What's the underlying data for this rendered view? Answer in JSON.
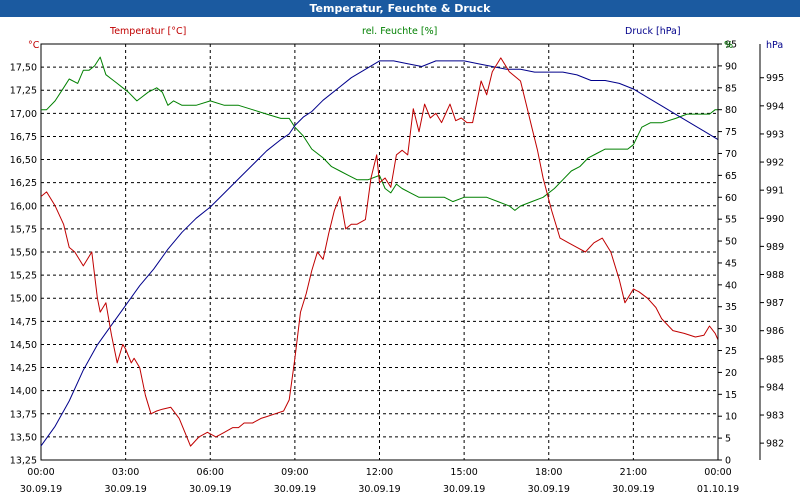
{
  "window": {
    "title": "Temperatur, Feuchte & Druck"
  },
  "chart_data": {
    "type": "line",
    "title": "Temperatur, Feuchte & Druck",
    "x_unit": "hours",
    "xlim": [
      0,
      24
    ],
    "x_ticks": [
      {
        "x": 0,
        "time": "00:00",
        "date": "30.09.19"
      },
      {
        "x": 3,
        "time": "03:00",
        "date": "30.09.19"
      },
      {
        "x": 6,
        "time": "06:00",
        "date": "30.09.19"
      },
      {
        "x": 9,
        "time": "09:00",
        "date": "30.09.19"
      },
      {
        "x": 12,
        "time": "12:00",
        "date": "30.09.19"
      },
      {
        "x": 15,
        "time": "15:00",
        "date": "30.09.19"
      },
      {
        "x": 18,
        "time": "18:00",
        "date": "30.09.19"
      },
      {
        "x": 21,
        "time": "21:00",
        "date": "30.09.19"
      },
      {
        "x": 24,
        "time": "00:00",
        "date": "01.10.19"
      }
    ],
    "axes": {
      "temperature": {
        "unit": "°C",
        "label": "Temperatur [°C]",
        "color": "#c00000",
        "range": [
          13.25,
          17.75
        ],
        "ticks": [
          "13,25",
          "13,50",
          "13,75",
          "14,00",
          "14,25",
          "14,50",
          "14,75",
          "15,00",
          "15,25",
          "15,50",
          "15,75",
          "16,00",
          "16,25",
          "16,50",
          "16,75",
          "17,00",
          "17,25",
          "17,50"
        ]
      },
      "humidity": {
        "unit": "%",
        "label": "rel. Feuchte [%]",
        "color": "#008000",
        "range": [
          0,
          95
        ],
        "ticks": [
          "0",
          "5",
          "10",
          "15",
          "20",
          "25",
          "30",
          "35",
          "40",
          "45",
          "50",
          "55",
          "60",
          "65",
          "70",
          "75",
          "80",
          "85",
          "90",
          "95"
        ]
      },
      "pressure": {
        "unit": "hPa",
        "label": "Druck [hPa]",
        "color": "#00008b",
        "range": [
          981.4,
          996.2
        ],
        "ticks": [
          "982",
          "983",
          "984",
          "985",
          "986",
          "987",
          "988",
          "989",
          "990",
          "991",
          "992",
          "993",
          "994",
          "995"
        ]
      }
    },
    "series": [
      {
        "name": "Temperatur [°C]",
        "axis": "temperature",
        "color": "#c00000",
        "x": [
          0,
          0.2,
          0.5,
          0.8,
          1.0,
          1.2,
          1.5,
          1.8,
          2.0,
          2.1,
          2.3,
          2.5,
          2.7,
          2.9,
          3.0,
          3.2,
          3.3,
          3.5,
          3.7,
          3.9,
          4.1,
          4.3,
          4.6,
          4.9,
          5.1,
          5.3,
          5.6,
          5.9,
          6.2,
          6.5,
          6.8,
          7.0,
          7.2,
          7.5,
          7.8,
          8.0,
          8.3,
          8.6,
          8.8,
          9.0,
          9.2,
          9.4,
          9.6,
          9.8,
          10.0,
          10.2,
          10.4,
          10.6,
          10.8,
          11.0,
          11.2,
          11.5,
          11.7,
          11.9,
          12.0,
          12.2,
          12.4,
          12.6,
          12.8,
          13.0,
          13.2,
          13.4,
          13.6,
          13.8,
          14.0,
          14.2,
          14.5,
          14.7,
          14.9,
          15.1,
          15.3,
          15.6,
          15.8,
          16.0,
          16.3,
          16.6,
          16.8,
          17.0,
          17.2,
          17.4,
          17.6,
          17.8,
          18.1,
          18.4,
          18.7,
          19.0,
          19.3,
          19.6,
          19.9,
          20.2,
          20.5,
          20.7,
          20.9,
          21.0,
          21.2,
          21.5,
          21.8,
          22.0,
          22.4,
          22.8,
          23.2,
          23.5,
          23.7,
          23.9,
          24.0
        ],
        "values": [
          16.1,
          16.15,
          16.0,
          15.8,
          15.55,
          15.5,
          15.35,
          15.5,
          15.0,
          14.85,
          14.95,
          14.6,
          14.3,
          14.5,
          14.45,
          14.3,
          14.35,
          14.25,
          13.95,
          13.75,
          13.78,
          13.8,
          13.82,
          13.7,
          13.55,
          13.4,
          13.5,
          13.55,
          13.5,
          13.55,
          13.6,
          13.6,
          13.65,
          13.65,
          13.7,
          13.72,
          13.75,
          13.78,
          13.9,
          14.35,
          14.85,
          15.05,
          15.3,
          15.5,
          15.42,
          15.7,
          15.95,
          16.1,
          15.75,
          15.8,
          15.8,
          15.85,
          16.3,
          16.55,
          16.25,
          16.3,
          16.2,
          16.55,
          16.6,
          16.55,
          17.05,
          16.8,
          17.1,
          16.95,
          17.0,
          16.9,
          17.1,
          16.92,
          16.95,
          16.9,
          16.9,
          17.35,
          17.2,
          17.45,
          17.6,
          17.45,
          17.4,
          17.35,
          17.1,
          16.85,
          16.6,
          16.3,
          15.95,
          15.65,
          15.6,
          15.55,
          15.5,
          15.6,
          15.65,
          15.5,
          15.2,
          14.95,
          15.05,
          15.1,
          15.07,
          15.0,
          14.9,
          14.78,
          14.65,
          14.62,
          14.58,
          14.6,
          14.7,
          14.62,
          14.55
        ]
      },
      {
        "name": "rel. Feuchte [%]",
        "axis": "humidity",
        "color": "#008000",
        "x": [
          0,
          0.2,
          0.5,
          0.8,
          1.0,
          1.3,
          1.5,
          1.7,
          1.9,
          2.1,
          2.3,
          2.5,
          2.7,
          2.9,
          3.1,
          3.4,
          3.6,
          3.8,
          4.1,
          4.3,
          4.5,
          4.7,
          5.0,
          5.5,
          6.0,
          6.5,
          7.0,
          7.5,
          8.0,
          8.5,
          8.8,
          9.0,
          9.3,
          9.6,
          10.0,
          10.3,
          10.6,
          10.9,
          11.2,
          11.6,
          12.0,
          12.2,
          12.4,
          12.6,
          12.8,
          13.1,
          13.4,
          13.7,
          14.0,
          14.3,
          14.6,
          15.0,
          15.4,
          15.8,
          16.2,
          16.6,
          16.8,
          17.0,
          17.4,
          17.8,
          18.2,
          18.5,
          18.8,
          19.1,
          19.4,
          19.7,
          20.0,
          20.3,
          20.6,
          20.8,
          21.0,
          21.3,
          21.6,
          22.0,
          22.5,
          22.9,
          23.3,
          23.7,
          23.9,
          24.0
        ],
        "values": [
          80,
          80,
          82,
          85,
          87,
          86,
          89,
          89,
          90,
          92,
          88,
          87,
          86,
          85,
          84,
          82,
          83,
          84,
          85,
          84,
          81,
          82,
          81,
          81,
          82,
          81,
          81,
          80,
          79,
          78,
          78,
          76,
          74,
          71,
          69,
          67,
          66,
          65,
          64,
          64,
          65,
          62,
          61,
          63,
          62,
          61,
          60,
          60,
          60,
          60,
          59,
          60,
          60,
          60,
          59,
          58,
          57,
          58,
          59,
          60,
          62,
          64,
          66,
          67,
          69,
          70,
          71,
          71,
          71,
          71,
          72,
          76,
          77,
          77,
          78,
          79,
          79,
          79,
          80,
          80
        ]
      },
      {
        "name": "Druck [hPa]",
        "axis": "pressure",
        "color": "#00008b",
        "x": [
          0,
          0.5,
          1.0,
          1.5,
          2.0,
          2.5,
          3.0,
          3.5,
          4.0,
          4.5,
          5.0,
          5.5,
          6.0,
          6.5,
          7.0,
          7.5,
          8.0,
          8.5,
          8.8,
          9.0,
          9.3,
          9.6,
          10.0,
          10.5,
          11.0,
          11.5,
          12.0,
          12.5,
          13.0,
          13.5,
          14.0,
          14.5,
          15.0,
          15.5,
          16.0,
          16.5,
          17.0,
          17.5,
          18.0,
          18.5,
          19.0,
          19.5,
          20.0,
          20.5,
          21.0,
          21.5,
          22.0,
          22.5,
          23.0,
          23.5,
          24.0
        ],
        "values": [
          981.9,
          982.6,
          983.5,
          984.6,
          985.5,
          986.2,
          986.9,
          987.6,
          988.2,
          988.9,
          989.5,
          990.0,
          990.4,
          990.9,
          991.4,
          991.9,
          992.4,
          992.8,
          993.0,
          993.3,
          993.6,
          993.8,
          994.2,
          994.6,
          995.0,
          995.3,
          995.6,
          995.6,
          995.5,
          995.4,
          995.6,
          995.6,
          995.6,
          995.5,
          995.4,
          995.3,
          995.3,
          995.2,
          995.2,
          995.2,
          995.1,
          994.9,
          994.9,
          994.8,
          994.6,
          994.3,
          994.0,
          993.7,
          993.4,
          993.1,
          992.8
        ]
      }
    ]
  }
}
